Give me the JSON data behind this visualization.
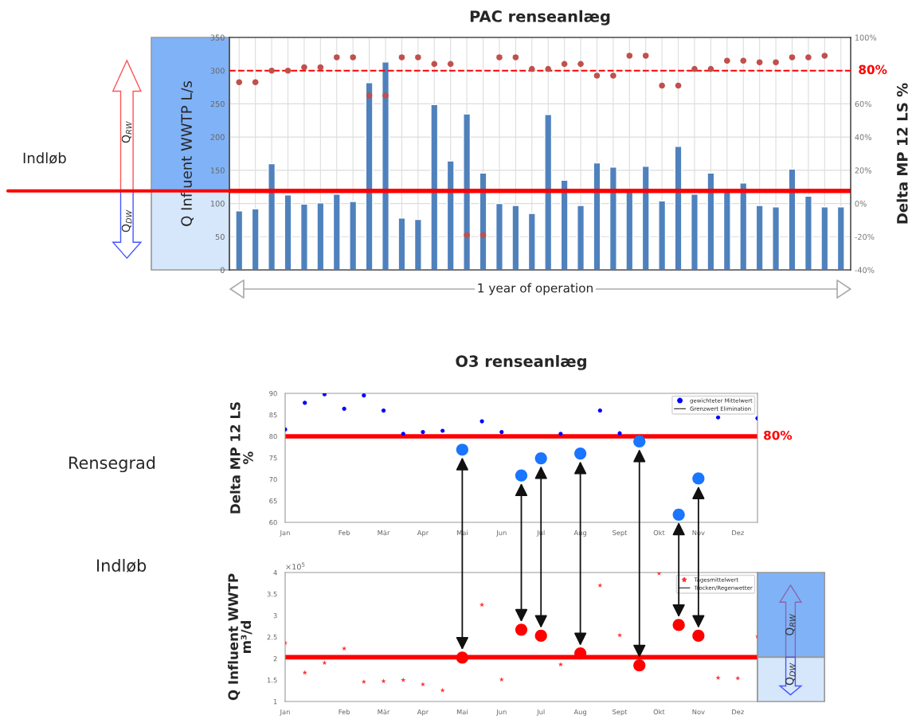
{
  "chart_data": [
    {
      "type": "bar",
      "title": "PAC renseanlæg",
      "ylabel": "Q Influent WWTP L/s",
      "y2label": "Delta MP 12 LS %",
      "categories": [
        null,
        null,
        null,
        null,
        null,
        null,
        null,
        null,
        null,
        null,
        null,
        null,
        null,
        null,
        null,
        null,
        null,
        null,
        null,
        null,
        null,
        null,
        null,
        null,
        null,
        null,
        null,
        null,
        null,
        null,
        null,
        null,
        null,
        null,
        null,
        null,
        null,
        null
      ],
      "series": [
        {
          "color": "#4f81bd",
          "values": [
            89,
            92,
            160,
            113,
            99,
            101,
            114,
            103,
            282,
            313,
            78,
            76,
            249,
            164,
            235,
            146,
            100,
            97,
            85,
            234,
            135,
            97,
            161,
            155,
            119,
            156,
            104,
            186,
            114,
            146,
            119,
            131,
            97,
            95,
            152,
            111,
            95,
            95
          ]
        },
        {
          "type": "scatter",
          "axis": "y2",
          "color": "#c0504d",
          "marker": "circle",
          "values": [
            73,
            73,
            80,
            80,
            82,
            82,
            88,
            88,
            65,
            65,
            88,
            88,
            84,
            84,
            -19,
            -19,
            88,
            88,
            81,
            81,
            84,
            84,
            77,
            77,
            89,
            89,
            71,
            71,
            81,
            81,
            86,
            86,
            85,
            85,
            88,
            88,
            89,
            null
          ]
        }
      ],
      "ylim": [
        0,
        350
      ],
      "yticks": [
        0,
        50,
        100,
        150,
        200,
        250,
        300,
        350
      ],
      "y2lim": [
        -40,
        100
      ],
      "y2ticks": [
        {
          "value": -40,
          "label": "-40%"
        },
        {
          "value": -20,
          "label": "-20%"
        },
        {
          "value": 0,
          "label": "0%"
        },
        {
          "value": 20,
          "label": "20%"
        },
        {
          "value": 40,
          "label": "40%"
        },
        {
          "value": 60,
          "label": "60%"
        },
        {
          "value": 80,
          "label": null
        },
        {
          "value": 100,
          "label": "100%"
        }
      ],
      "ref_lines": [
        {
          "axis": "y",
          "value": 119,
          "color": "#ff0000",
          "line_style": "solid"
        },
        {
          "axis": "y2",
          "value": 80,
          "label": "80%",
          "color": "#ff0000",
          "line_style": "dashed"
        }
      ],
      "grid": true,
      "annotations": [
        "Indløb",
        "1 year of operation",
        "Q$_{RW}$",
        "Q$_{DW}$"
      ]
    },
    {
      "type": "scatter",
      "title": "O3 renseanlæg",
      "ylabel": "Delta MP 12 LS\n%",
      "categories": [
        "Jan",
        null,
        null,
        "Feb",
        null,
        "Mär",
        null,
        "Apr",
        null,
        "Mai",
        null,
        "Jun",
        null,
        "Jul",
        null,
        "Aug",
        null,
        "Sept",
        null,
        "Okt",
        null,
        "Nov",
        null,
        "Dez",
        null
      ],
      "series": [
        {
          "name": "gewichteter Mittelwert",
          "color": "#0000ff",
          "marker": "circle",
          "values": [
            81.6,
            87.8,
            89.8,
            86.4,
            89.5,
            86.0,
            80.6,
            81.0,
            81.3,
            null,
            83.5,
            81.0,
            null,
            null,
            80.6,
            null,
            86.0,
            80.7,
            null,
            null,
            null,
            null,
            84.4,
            null,
            84.2
          ]
        },
        {
          "type": "line",
          "name": "Grenzwert Elimination",
          "color": "#000000",
          "marker": "none",
          "values": [
            null,
            null,
            null,
            null,
            null,
            null,
            null,
            null,
            null,
            null,
            null,
            null,
            null,
            null,
            null,
            null,
            null,
            null,
            null,
            null,
            null,
            null,
            null,
            null,
            null
          ]
        },
        {
          "color": "#1a75ff",
          "marker": "circle",
          "values": [
            null,
            null,
            null,
            null,
            null,
            null,
            null,
            null,
            null,
            76.9,
            null,
            null,
            70.9,
            74.9,
            null,
            76.0,
            null,
            null,
            78.8,
            null,
            61.8,
            70.2,
            null,
            null,
            null
          ]
        }
      ],
      "ylim": [
        60,
        90
      ],
      "yticks": [
        60,
        65,
        70,
        75,
        80,
        85,
        90
      ],
      "ref_lines": [
        {
          "axis": "y",
          "value": 80,
          "label": "80%",
          "color": "#ff0000",
          "line_style": "solid"
        }
      ],
      "legend": "top right",
      "annotations": [
        "Rensegrad"
      ]
    },
    {
      "type": "scatter",
      "ylabel": "Q Influent WWTP\nm³/d",
      "categories": [
        "Jan",
        null,
        null,
        "Feb",
        null,
        "Mär",
        null,
        "Apr",
        null,
        "Mai",
        null,
        "Jun",
        null,
        "Jul",
        null,
        "Aug",
        null,
        "Sept",
        null,
        "Okt",
        null,
        "Nov",
        null,
        "Dez",
        null
      ],
      "series": [
        {
          "name": "Tagesmittelwert",
          "color": "#ff3333",
          "marker": "star",
          "values": [
            2.36,
            1.67,
            1.9,
            2.23,
            1.46,
            1.47,
            1.5,
            1.4,
            1.26,
            null,
            3.25,
            1.51,
            null,
            null,
            1.86,
            null,
            3.7,
            2.54,
            null,
            3.98,
            null,
            null,
            1.55,
            1.54,
            2.51
          ]
        },
        {
          "type": "line",
          "name": "Trocken/Regenwetter",
          "color": "#000000",
          "marker": "none",
          "values": [
            null,
            null,
            null,
            null,
            null,
            null,
            null,
            null,
            null,
            null,
            null,
            null,
            null,
            null,
            null,
            null,
            null,
            null,
            null,
            null,
            null,
            null,
            null,
            null,
            null
          ]
        },
        {
          "color": "#ff0000",
          "marker": "circle",
          "values": [
            null,
            null,
            null,
            null,
            null,
            null,
            null,
            null,
            null,
            2.02,
            null,
            null,
            2.67,
            2.53,
            null,
            2.12,
            null,
            null,
            1.84,
            null,
            2.78,
            2.53,
            null,
            null,
            null
          ]
        }
      ],
      "ylim": [
        1,
        4
      ],
      "yticks": [
        1,
        1.5,
        2,
        2.5,
        3,
        3.5,
        4
      ],
      "ref_lines": [
        {
          "axis": "y",
          "value": 2.03,
          "color": "#ff0000",
          "line_style": "solid"
        }
      ],
      "legend": "top right",
      "annotations": [
        "×10$^{5}$",
        "Indløb",
        "Q$_{RW}$",
        "Q$_{DW}$"
      ]
    }
  ]
}
